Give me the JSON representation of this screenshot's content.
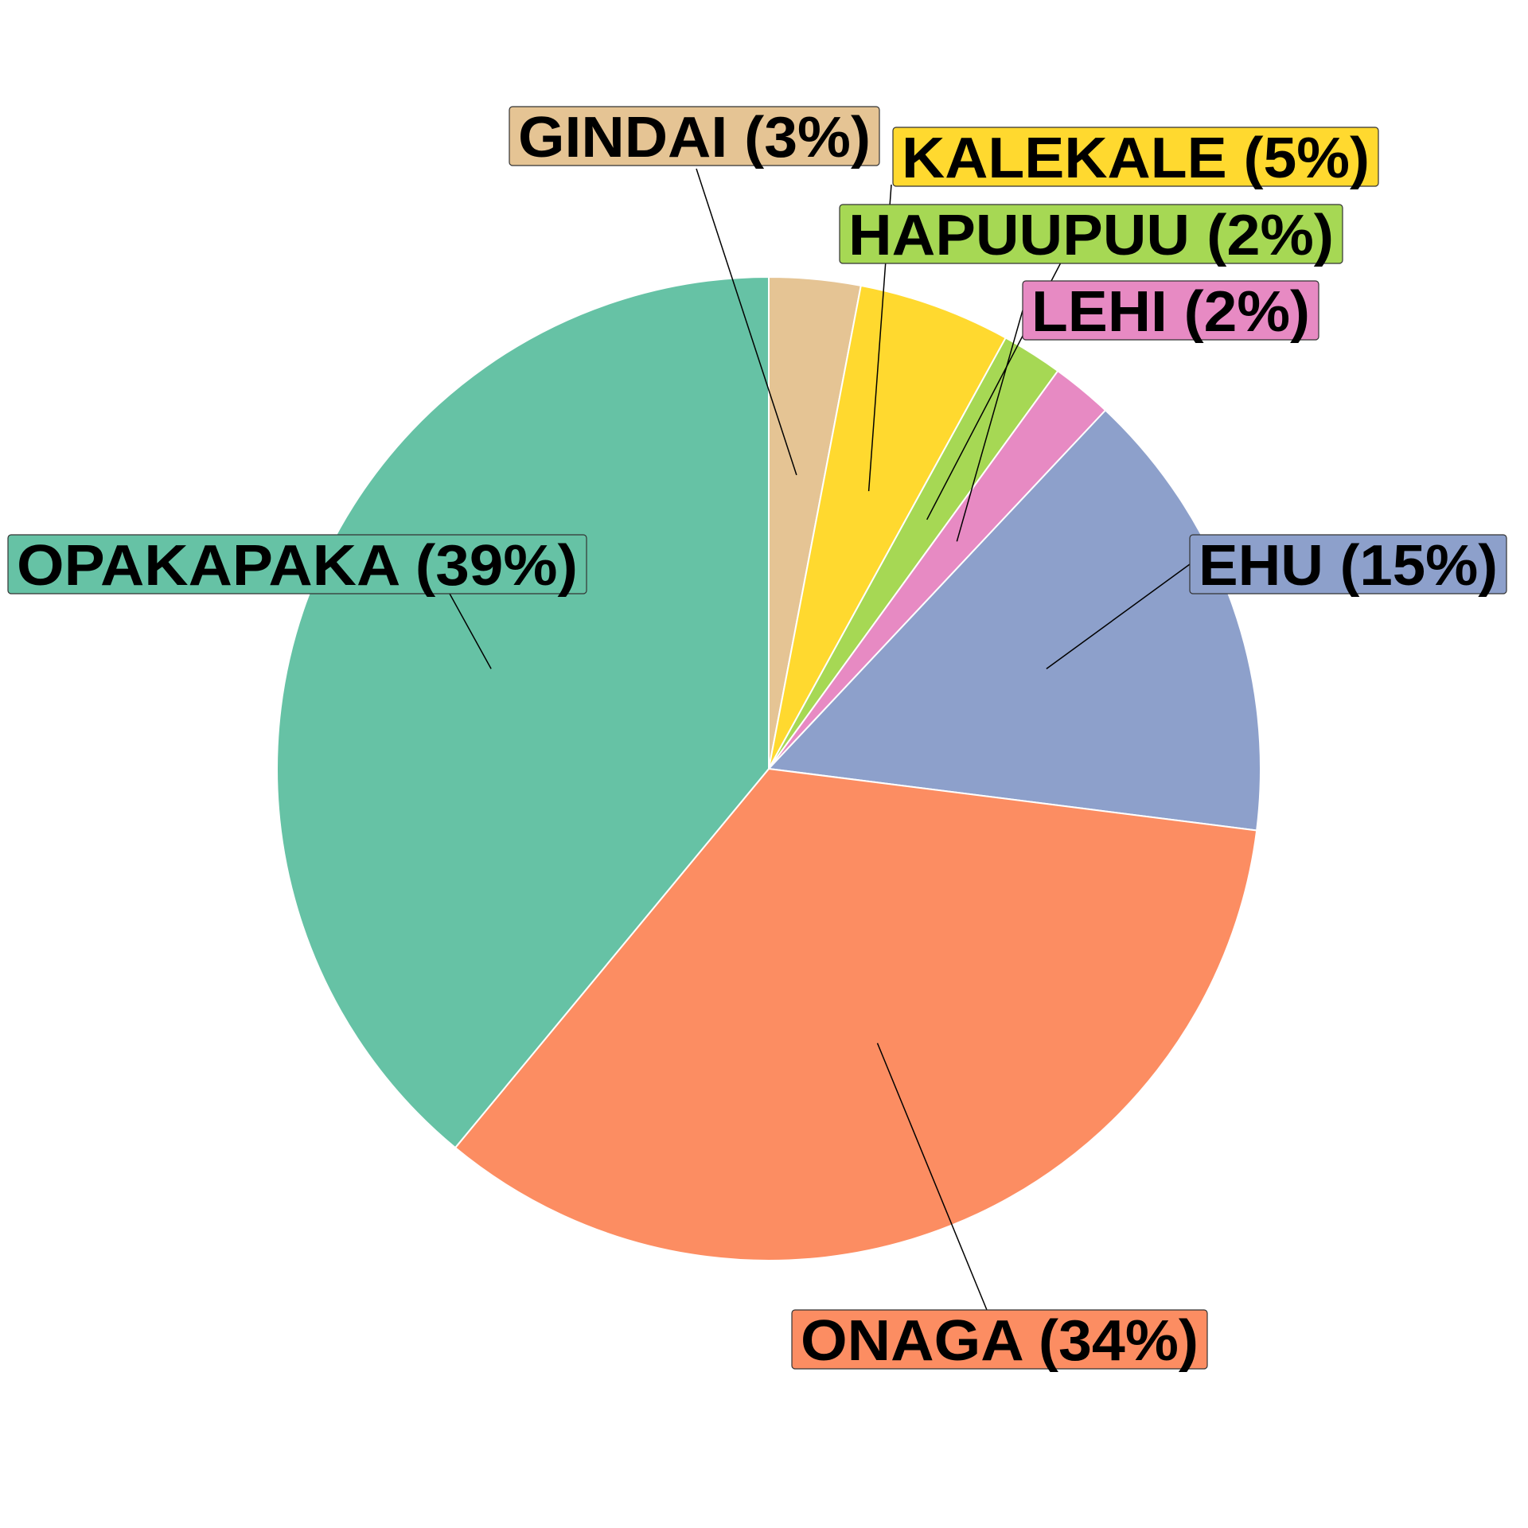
{
  "chart_data": {
    "type": "pie",
    "start_angle": "12 o'clock",
    "direction": "clockwise",
    "slices": [
      {
        "name": "GINDAI",
        "value": 3,
        "label": "GINDAI (3%)",
        "color": "#E5C494"
      },
      {
        "name": "KALEKALE",
        "value": 5,
        "label": "KALEKALE (5%)",
        "color": "#FFD92F"
      },
      {
        "name": "HAPUUPUU",
        "value": 2,
        "label": "HAPUUPUU (2%)",
        "color": "#A6D854"
      },
      {
        "name": "LEHI",
        "value": 2,
        "label": "LEHI (2%)",
        "color": "#E78AC3"
      },
      {
        "name": "EHU",
        "value": 15,
        "label": "EHU (15%)",
        "color": "#8DA0CB"
      },
      {
        "name": "ONAGA",
        "value": 34,
        "label": "ONAGA (34%)",
        "color": "#FC8D62"
      },
      {
        "name": "OPAKAPAKA",
        "value": 39,
        "label": "OPAKAPAKA (39%)",
        "color": "#66C2A5"
      }
    ]
  }
}
